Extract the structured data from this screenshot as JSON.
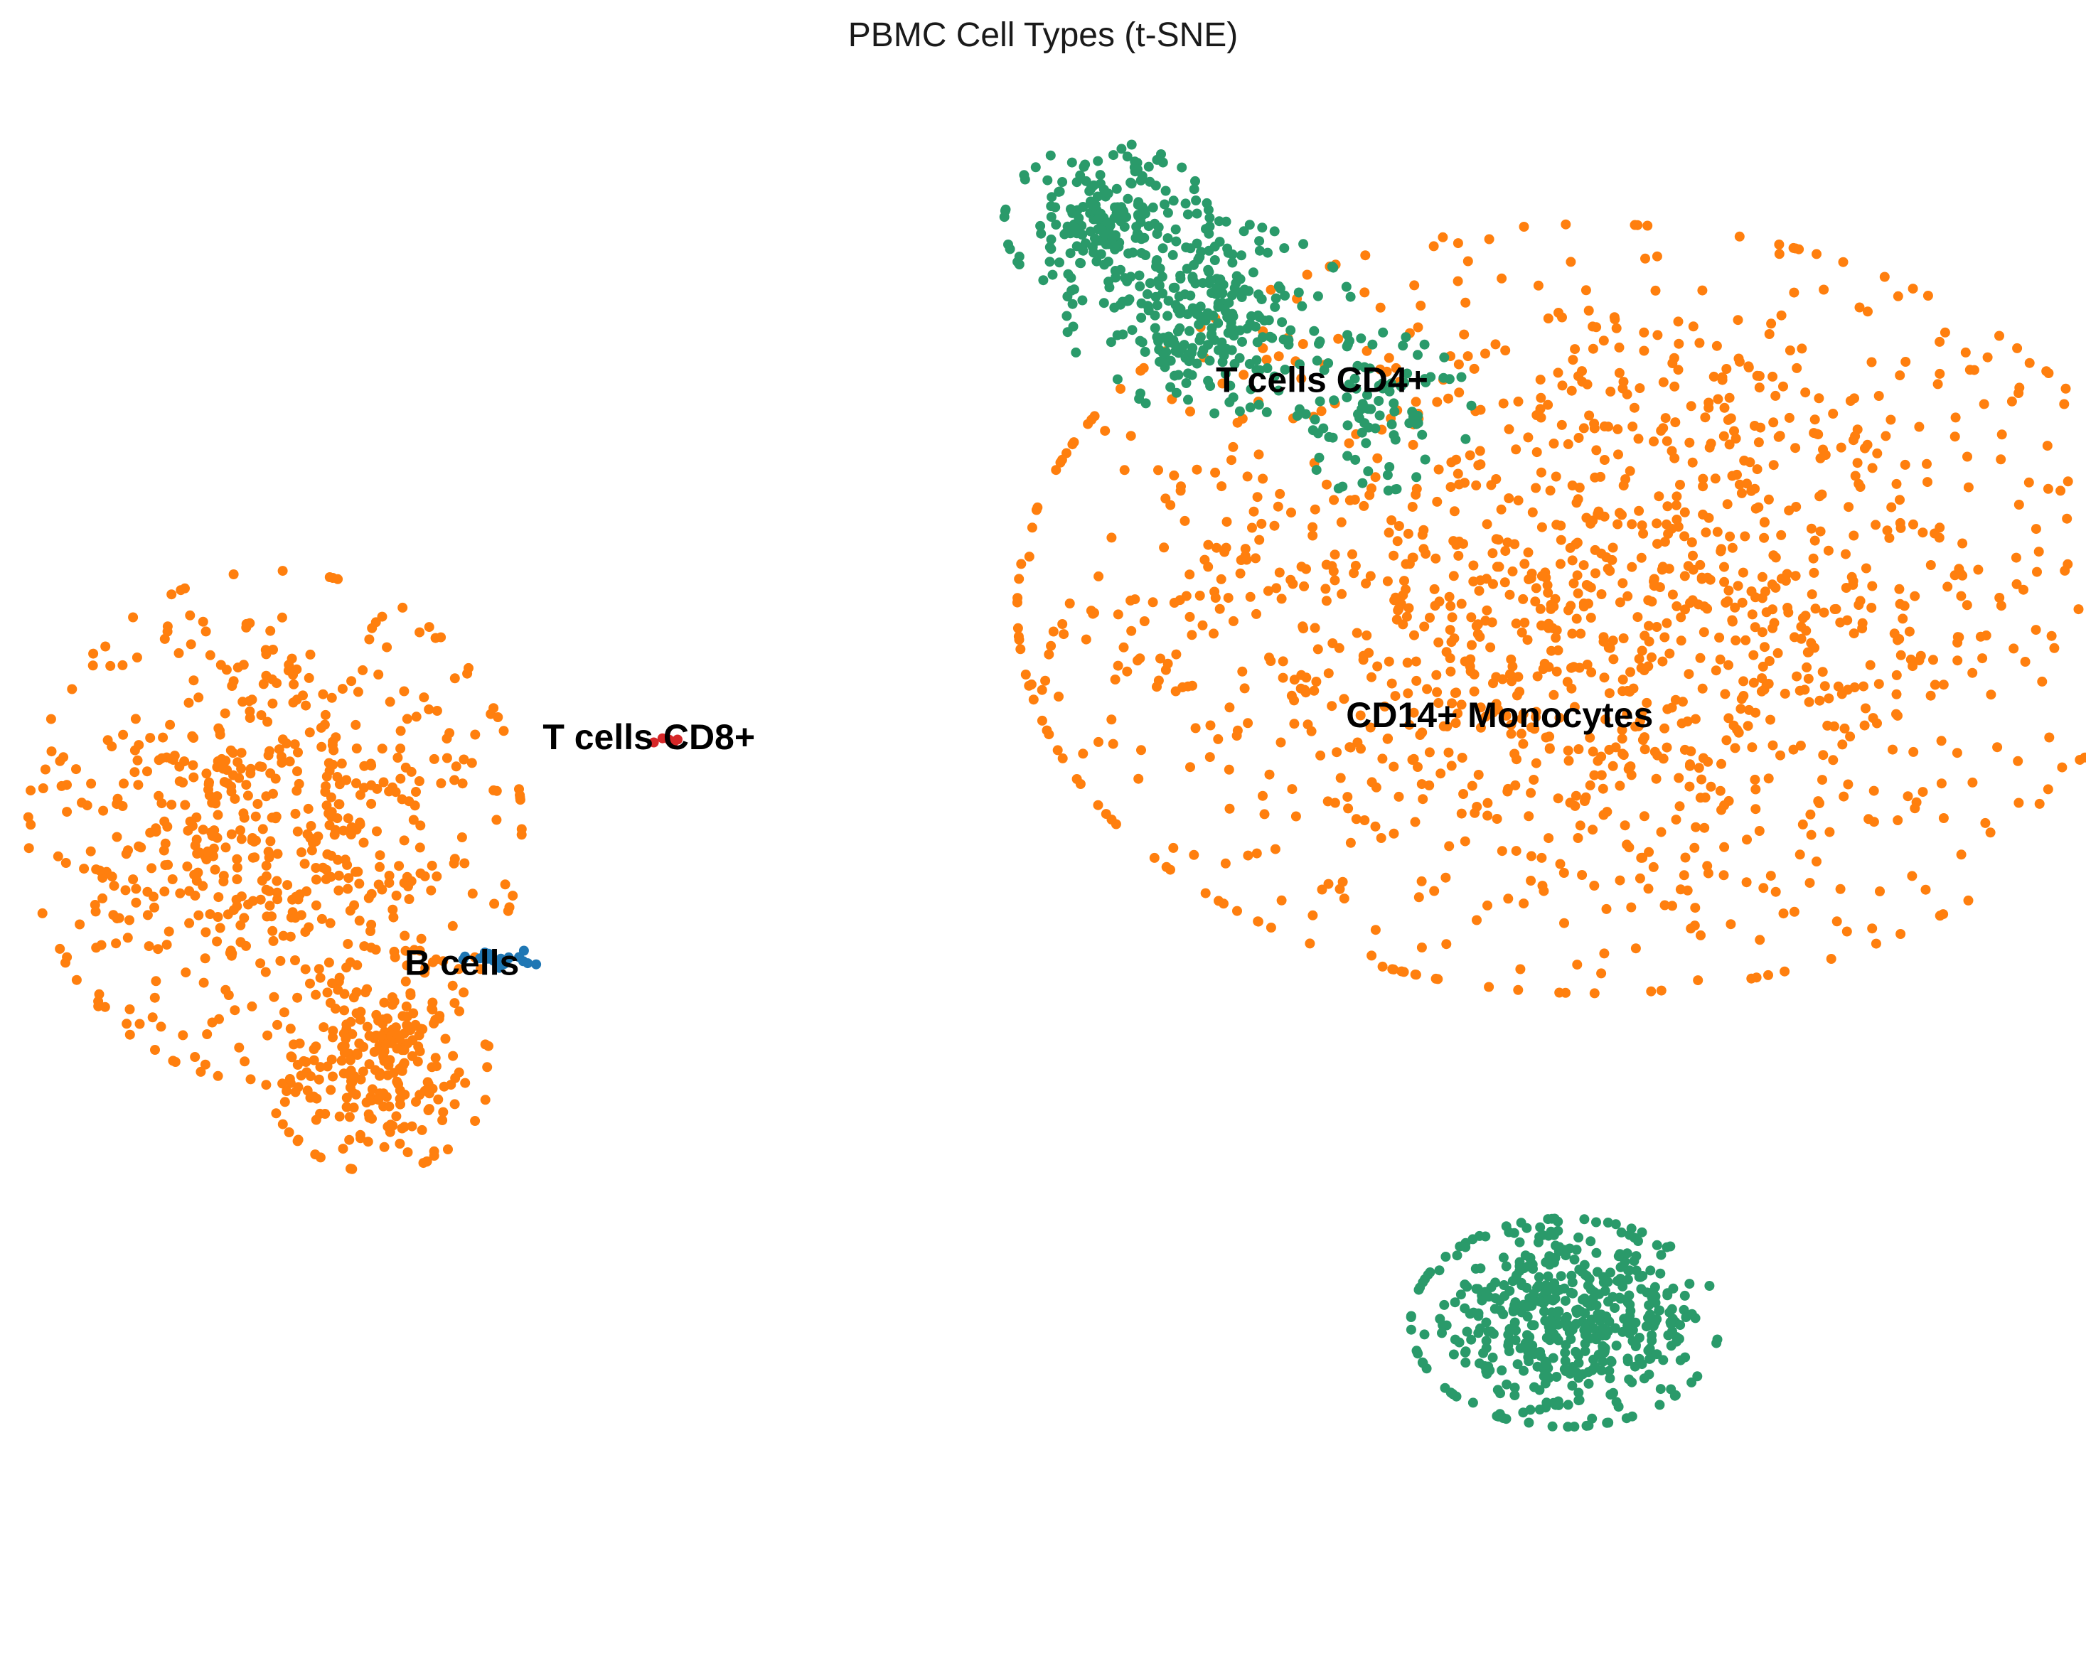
{
  "chart_data": {
    "type": "scatter",
    "title": "PBMC Cell Types (t-SNE)",
    "xlabel": "",
    "ylabel": "",
    "axes_visible": false,
    "grid": false,
    "legend": "none",
    "cluster_labels": [
      {
        "text": "T cells CD4+",
        "x": 0.3,
        "y": 0.66
      },
      {
        "text": "CD14+ Monocytes",
        "x": 0.49,
        "y": 0.2
      },
      {
        "text": "T cells CD8+",
        "x": -0.42,
        "y": 0.17
      },
      {
        "text": "B cells",
        "x": -0.62,
        "y": -0.14
      }
    ],
    "series": [
      {
        "name": "",
        "color": "#ff7f0e",
        "clusters": [
          {
            "cx": 0.59,
            "cy": 0.35,
            "sx": 0.28,
            "sy": 0.24,
            "n": 1450
          },
          {
            "cx": -0.82,
            "cy": 0.05,
            "sx": 0.12,
            "sy": 0.16,
            "n": 620
          },
          {
            "cx": -0.71,
            "cy": -0.28,
            "sx": 0.055,
            "sy": 0.065,
            "n": 230
          }
        ]
      },
      {
        "name": "",
        "color": "#2a9a6a",
        "clusters": [
          {
            "cx": 0.07,
            "cy": 0.88,
            "sx": 0.05,
            "sy": 0.05,
            "n": 200
          },
          {
            "cx": 0.18,
            "cy": 0.75,
            "sx": 0.07,
            "sy": 0.06,
            "n": 260
          },
          {
            "cx": 0.35,
            "cy": 0.62,
            "sx": 0.05,
            "sy": 0.05,
            "n": 90
          },
          {
            "cx": 0.56,
            "cy": -0.63,
            "sx": 0.075,
            "sy": 0.065,
            "n": 500
          }
        ]
      },
      {
        "name": "",
        "color": "#1f77b4",
        "clusters": [
          {
            "cx": -0.575,
            "cy": -0.13,
            "sx": 0.02,
            "sy": 0.006,
            "n": 22
          }
        ]
      },
      {
        "name": "",
        "color": "#d62728",
        "clusters": [
          {
            "cx": -0.4,
            "cy": 0.17,
            "sx": 0.008,
            "sy": 0.003,
            "n": 5
          }
        ]
      }
    ],
    "xlim": [
      -1.0,
      1.0
    ],
    "ylim": [
      -1.0,
      1.0
    ]
  }
}
